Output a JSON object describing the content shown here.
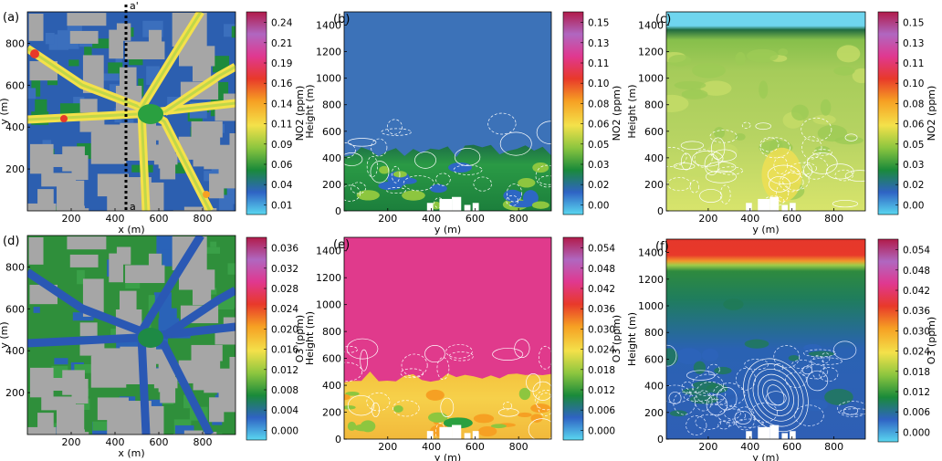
{
  "chart_data": [
    {
      "id": "a",
      "panel_label": "(a)",
      "kind": "map",
      "xlabel": "x (m)",
      "ylabel": "y (m)",
      "xticks": [
        200,
        400,
        600,
        800
      ],
      "yticks": [
        200,
        400,
        600,
        800
      ],
      "xlim": [
        0,
        950
      ],
      "ylim": [
        0,
        950
      ],
      "annotations": [
        {
          "text": "a'"
        },
        {
          "text": "a"
        }
      ],
      "colorbar": {
        "label": "NO2 (ppm)",
        "ticks": [
          "0.01",
          "0.04",
          "0.06",
          "0.09",
          "0.11",
          "0.14",
          "0.16",
          "0.19",
          "0.21",
          "0.24"
        ],
        "scheme": "no2"
      }
    },
    {
      "id": "b",
      "panel_label": "(b)",
      "kind": "section",
      "xlabel": "y (m)",
      "ylabel": "Height (m)",
      "xticks": [
        200,
        400,
        600,
        800
      ],
      "yticks": [
        0,
        200,
        400,
        600,
        800,
        1000,
        1200,
        1400
      ],
      "xlim": [
        0,
        950
      ],
      "ylim": [
        0,
        1500
      ],
      "colorbar": {
        "label": "NO2 (ppm)",
        "ticks": [
          "0.00",
          "0.02",
          "0.03",
          "0.05",
          "0.06",
          "0.08",
          "0.10",
          "0.11",
          "0.13",
          "0.15"
        ],
        "scheme": "no2"
      }
    },
    {
      "id": "c",
      "panel_label": "(c)",
      "kind": "section",
      "xlabel": "y (m)",
      "ylabel": "Height (m)",
      "xticks": [
        200,
        400,
        600,
        800
      ],
      "yticks": [
        0,
        200,
        400,
        600,
        800,
        1000,
        1200,
        1400
      ],
      "xlim": [
        0,
        950
      ],
      "ylim": [
        0,
        1500
      ],
      "colorbar": {
        "label": "NO2 (ppm)",
        "ticks": [
          "0.00",
          "0.02",
          "0.03",
          "0.05",
          "0.06",
          "0.08",
          "0.10",
          "0.11",
          "0.13",
          "0.15"
        ],
        "scheme": "no2"
      }
    },
    {
      "id": "d",
      "panel_label": "(d)",
      "kind": "map",
      "xlabel": "x (m)",
      "ylabel": "y (m)",
      "xticks": [
        200,
        400,
        600,
        800
      ],
      "yticks": [
        200,
        400,
        600,
        800
      ],
      "xlim": [
        0,
        950
      ],
      "ylim": [
        0,
        950
      ],
      "colorbar": {
        "label": "O3 (ppm)",
        "ticks": [
          "0.000",
          "0.004",
          "0.008",
          "0.012",
          "0.016",
          "0.020",
          "0.024",
          "0.028",
          "0.032",
          "0.036"
        ],
        "scheme": "o3"
      }
    },
    {
      "id": "e",
      "panel_label": "(e)",
      "kind": "section",
      "xlabel": "y (m)",
      "ylabel": "Height (m)",
      "xticks": [
        200,
        400,
        600,
        800
      ],
      "yticks": [
        0,
        200,
        400,
        600,
        800,
        1000,
        1200,
        1400
      ],
      "xlim": [
        0,
        950
      ],
      "ylim": [
        0,
        1500
      ],
      "colorbar": {
        "label": "O3 (ppm)",
        "ticks": [
          "0.000",
          "0.006",
          "0.012",
          "0.018",
          "0.024",
          "0.030",
          "0.036",
          "0.042",
          "0.048",
          "0.054"
        ],
        "scheme": "o3"
      }
    },
    {
      "id": "f",
      "panel_label": "(f)",
      "kind": "section",
      "xlabel": "y (m)",
      "ylabel": "Height (m)",
      "xticks": [
        200,
        400,
        600,
        800
      ],
      "yticks": [
        0,
        200,
        400,
        600,
        800,
        1000,
        1200,
        1400
      ],
      "xlim": [
        0,
        950
      ],
      "ylim": [
        0,
        1500
      ],
      "colorbar": {
        "label": "O3 (ppm)",
        "ticks": [
          "0.000",
          "0.006",
          "0.012",
          "0.018",
          "0.024",
          "0.030",
          "0.036",
          "0.042",
          "0.048",
          "0.054"
        ],
        "scheme": "o3"
      }
    }
  ],
  "colors": {
    "building": "#a6a6a6",
    "no2_scale": [
      "#5ad7f0",
      "#2f63c4",
      "#1a8a3a",
      "#8dc63f",
      "#f4e14a",
      "#f6a023",
      "#e8392a",
      "#e0388f",
      "#b067c0",
      "#b11b4a"
    ],
    "o3_scale": [
      "#5ad7f0",
      "#2f63c4",
      "#1a8a3a",
      "#8dc63f",
      "#f4e14a",
      "#f6a023",
      "#e8392a",
      "#e0388f",
      "#b067c0",
      "#b11b4a"
    ],
    "section_b_background": "#3c72b8",
    "section_c_background": "#b2d36a",
    "section_e_background": "#e03a8c",
    "section_f_background": "#2f5fb5"
  }
}
